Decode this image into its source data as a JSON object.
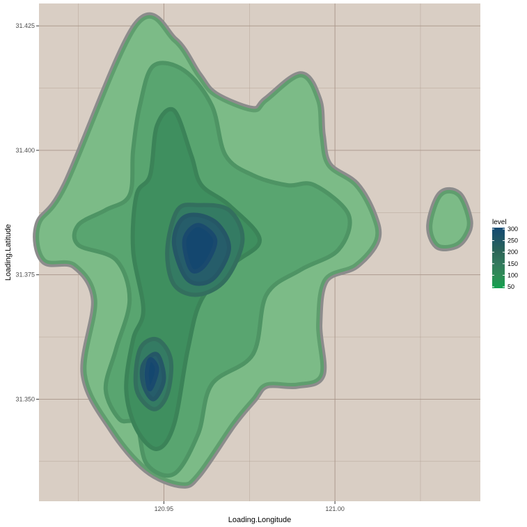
{
  "chart_data": {
    "type": "contour",
    "xlabel": "Loading.Longitude",
    "ylabel": "Loading.Latitude",
    "xlim": [
      120.9135,
      121.0425
    ],
    "ylim": [
      31.3295,
      31.4295
    ],
    "x_ticks": [
      {
        "value": 120.95,
        "label": "120.95"
      },
      {
        "value": 121.0,
        "label": "121.00"
      }
    ],
    "x_minor": [
      120.925,
      120.975,
      121.025
    ],
    "y_ticks": [
      {
        "value": 31.35,
        "label": "31.350"
      },
      {
        "value": 31.375,
        "label": "31.375"
      },
      {
        "value": 31.4,
        "label": "31.400"
      },
      {
        "value": 31.425,
        "label": "31.425"
      }
    ],
    "y_minor": [
      31.3375,
      31.3625,
      31.3875,
      31.4125
    ],
    "grid": true,
    "panel_background": "#d9cec4",
    "grid_color": "#a89488",
    "outline_color": "#8c8c8c",
    "legend": {
      "title": "level",
      "position": "right",
      "entries": [
        {
          "label": "300",
          "color": "#144a72"
        },
        {
          "label": "250",
          "color": "#205766"
        },
        {
          "label": "200",
          "color": "#2c6657"
        },
        {
          "label": "150",
          "color": "#337a5d"
        },
        {
          "label": "100",
          "color": "#2e8c55"
        },
        {
          "label": "50",
          "color": "#12a04e"
        }
      ]
    },
    "levels": [
      {
        "level": 50,
        "color": "#7cbb87",
        "stroke": "#5f9e6e",
        "polygons": [
          [
            [
              120.9215,
              31.393
            ],
            [
              120.942,
              31.425
            ],
            [
              120.953,
              31.422
            ],
            [
              120.96,
              31.415
            ],
            [
              120.965,
              31.411
            ],
            [
              120.976,
              31.408
            ],
            [
              120.98,
              31.41
            ],
            [
              120.99,
              31.415
            ],
            [
              120.995,
              31.41
            ],
            [
              120.996,
              31.403
            ],
            [
              120.998,
              31.397
            ],
            [
              121.006,
              31.393
            ],
            [
              121.011,
              31.387
            ],
            [
              121.012,
              31.382
            ],
            [
              121.006,
              31.377
            ],
            [
              120.997,
              31.374
            ],
            [
              120.995,
              31.365
            ],
            [
              120.996,
              31.355
            ],
            [
              120.989,
              31.353
            ],
            [
              120.98,
              31.353
            ],
            [
              120.976,
              31.35
            ],
            [
              120.97,
              31.345
            ],
            [
              120.96,
              31.335
            ],
            [
              120.955,
              31.333
            ],
            [
              120.945,
              31.336
            ],
            [
              120.935,
              31.344
            ],
            [
              120.927,
              31.355
            ],
            [
              120.93,
              31.37
            ],
            [
              120.924,
              31.377
            ],
            [
              120.915,
              31.378
            ],
            [
              120.9135,
              31.385
            ]
          ],
          [
            [
              121.028,
              31.385
            ],
            [
              121.031,
              31.391
            ],
            [
              121.036,
              31.391
            ],
            [
              121.039,
              31.386
            ],
            [
              121.038,
              31.383
            ],
            [
              121.035,
              31.381
            ],
            [
              121.03,
              31.381
            ]
          ]
        ]
      },
      {
        "level": 100,
        "color": "#59a570",
        "stroke": "#4e9464",
        "polygons": [
          [
            [
              120.942,
              31.345
            ],
            [
              120.945,
              31.337
            ],
            [
              120.953,
              31.335
            ],
            [
              120.96,
              31.343
            ],
            [
              120.964,
              31.353
            ],
            [
              120.976,
              31.359
            ],
            [
              120.98,
              31.371
            ],
            [
              120.99,
              31.376
            ],
            [
              121.001,
              31.38
            ],
            [
              121.004,
              31.387
            ],
            [
              120.994,
              31.393
            ],
            [
              120.986,
              31.393
            ],
            [
              120.976,
              31.395
            ],
            [
              120.968,
              31.399
            ],
            [
              120.964,
              31.409
            ],
            [
              120.956,
              31.416
            ],
            [
              120.947,
              31.417
            ],
            [
              120.943,
              31.409
            ],
            [
              120.941,
              31.4
            ],
            [
              120.94,
              31.391
            ],
            [
              120.933,
              31.388
            ],
            [
              120.925,
              31.385
            ],
            [
              120.925,
              31.381
            ],
            [
              120.936,
              31.378
            ],
            [
              120.94,
              31.37
            ],
            [
              120.936,
              31.36
            ],
            [
              120.933,
              31.352
            ],
            [
              120.937,
              31.346
            ]
          ]
        ]
      },
      {
        "level": 150,
        "color": "#3f8f5f",
        "stroke": "#3b8358",
        "polygons": [
          [
            [
              120.939,
              31.352
            ],
            [
              120.942,
              31.344
            ],
            [
              120.948,
              31.34
            ],
            [
              120.953,
              31.345
            ],
            [
              120.957,
              31.36
            ],
            [
              120.961,
              31.37
            ],
            [
              120.97,
              31.377
            ],
            [
              120.978,
              31.382
            ],
            [
              120.969,
              31.389
            ],
            [
              120.961,
              31.393
            ],
            [
              120.958,
              31.399
            ],
            [
              120.953,
              31.408
            ],
            [
              120.948,
              31.405
            ],
            [
              120.946,
              31.395
            ],
            [
              120.942,
              31.391
            ],
            [
              120.941,
              31.38
            ],
            [
              120.944,
              31.368
            ],
            [
              120.941,
              31.362
            ]
          ]
        ]
      },
      {
        "level": 200,
        "color": "#347b63",
        "stroke": "#336f5e",
        "polygons": [
          [
            [
              120.951,
              31.38
            ],
            [
              120.953,
              31.373
            ],
            [
              120.96,
              31.371
            ],
            [
              120.968,
              31.374
            ],
            [
              120.973,
              31.382
            ],
            [
              120.969,
              31.388
            ],
            [
              120.96,
              31.389
            ],
            [
              120.954,
              31.388
            ]
          ],
          [
            [
              120.942,
              31.352
            ],
            [
              120.947,
              31.348
            ],
            [
              120.951,
              31.351
            ],
            [
              120.952,
              31.358
            ],
            [
              120.948,
              31.362
            ],
            [
              120.943,
              31.36
            ]
          ]
        ]
      },
      {
        "level": 250,
        "color": "#265d6a",
        "stroke": "#255766",
        "polygons": [
          [
            [
              120.953,
              31.381
            ],
            [
              120.957,
              31.374
            ],
            [
              120.964,
              31.374
            ],
            [
              120.969,
              31.38
            ],
            [
              120.966,
              31.385
            ],
            [
              120.96,
              31.387
            ],
            [
              120.955,
              31.386
            ]
          ],
          [
            [
              120.944,
              31.353
            ],
            [
              120.947,
              31.35
            ],
            [
              120.95,
              31.354
            ],
            [
              120.948,
              31.359
            ],
            [
              120.944,
              31.357
            ]
          ]
        ]
      },
      {
        "level": 300,
        "color": "#14476f",
        "stroke": "#1a4a6e",
        "polygons": [
          [
            [
              120.956,
              31.382
            ],
            [
              120.958,
              31.376
            ],
            [
              120.962,
              31.377
            ],
            [
              120.965,
              31.382
            ],
            [
              120.96,
              31.385
            ]
          ],
          [
            [
              120.945,
              31.355
            ],
            [
              120.946,
              31.352
            ],
            [
              120.948,
              31.356
            ],
            [
              120.946,
              31.358
            ]
          ]
        ]
      }
    ]
  }
}
